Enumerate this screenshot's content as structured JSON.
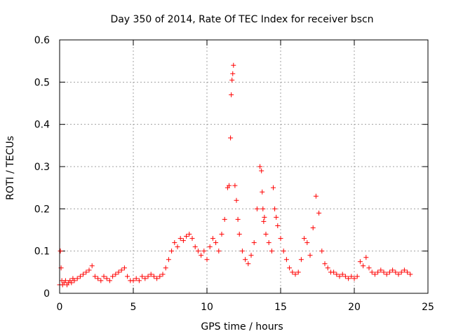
{
  "chart_data": {
    "type": "scatter",
    "title": "Day 350 of 2014, Rate Of TEC Index for receiver bscn",
    "xlabel": "GPS time / hours",
    "ylabel": "ROTI / TECUs",
    "xlim": [
      0,
      25
    ],
    "ylim": [
      0,
      0.6
    ],
    "xticks": [
      0,
      5,
      10,
      15,
      20,
      25
    ],
    "yticks": [
      0,
      0.1,
      0.2,
      0.3,
      0.4,
      0.5,
      0.6
    ],
    "grid": true,
    "marker": "plus",
    "color": "#ff0000",
    "x": [
      0.0,
      0.05,
      0.1,
      0.15,
      0.2,
      0.3,
      0.4,
      0.5,
      0.6,
      0.7,
      0.8,
      0.9,
      1.0,
      1.2,
      1.4,
      1.6,
      1.8,
      2.0,
      2.2,
      2.4,
      2.6,
      2.8,
      3.0,
      3.2,
      3.4,
      3.6,
      3.8,
      4.0,
      4.2,
      4.4,
      4.6,
      4.8,
      5.0,
      5.2,
      5.4,
      5.6,
      5.8,
      6.0,
      6.2,
      6.4,
      6.6,
      6.8,
      7.0,
      7.2,
      7.4,
      7.6,
      7.8,
      8.0,
      8.2,
      8.4,
      8.6,
      8.8,
      9.0,
      9.2,
      9.4,
      9.6,
      9.8,
      10.0,
      10.2,
      10.4,
      10.6,
      10.8,
      11.0,
      11.2,
      11.4,
      11.5,
      11.6,
      11.65,
      11.7,
      11.75,
      11.8,
      11.9,
      12.0,
      12.1,
      12.2,
      12.4,
      12.6,
      12.8,
      13.0,
      13.2,
      13.4,
      13.6,
      13.7,
      13.75,
      13.8,
      13.85,
      13.9,
      14.0,
      14.2,
      14.4,
      14.5,
      14.6,
      14.7,
      14.8,
      15.0,
      15.2,
      15.4,
      15.6,
      15.8,
      16.0,
      16.2,
      16.4,
      16.6,
      16.8,
      17.0,
      17.2,
      17.4,
      17.6,
      17.8,
      18.0,
      18.2,
      18.4,
      18.6,
      18.8,
      19.0,
      19.2,
      19.4,
      19.6,
      19.8,
      20.0,
      20.2,
      20.4,
      20.6,
      20.8,
      21.0,
      21.2,
      21.4,
      21.6,
      21.8,
      22.0,
      22.2,
      22.4,
      22.6,
      22.8,
      23.0,
      23.2,
      23.4,
      23.6,
      23.8
    ],
    "y": [
      0.02,
      0.1,
      0.06,
      0.03,
      0.02,
      0.025,
      0.03,
      0.02,
      0.025,
      0.03,
      0.025,
      0.035,
      0.03,
      0.035,
      0.04,
      0.045,
      0.05,
      0.055,
      0.065,
      0.04,
      0.035,
      0.03,
      0.04,
      0.035,
      0.03,
      0.04,
      0.045,
      0.05,
      0.055,
      0.06,
      0.04,
      0.03,
      0.03,
      0.035,
      0.03,
      0.04,
      0.035,
      0.04,
      0.045,
      0.04,
      0.035,
      0.04,
      0.045,
      0.06,
      0.08,
      0.1,
      0.12,
      0.11,
      0.13,
      0.125,
      0.135,
      0.14,
      0.13,
      0.11,
      0.1,
      0.09,
      0.1,
      0.08,
      0.11,
      0.13,
      0.12,
      0.1,
      0.14,
      0.175,
      0.25,
      0.255,
      0.368,
      0.47,
      0.505,
      0.52,
      0.54,
      0.255,
      0.22,
      0.175,
      0.14,
      0.1,
      0.08,
      0.07,
      0.09,
      0.12,
      0.2,
      0.3,
      0.29,
      0.24,
      0.2,
      0.17,
      0.18,
      0.14,
      0.12,
      0.1,
      0.25,
      0.2,
      0.18,
      0.16,
      0.13,
      0.1,
      0.08,
      0.06,
      0.05,
      0.045,
      0.05,
      0.08,
      0.13,
      0.12,
      0.09,
      0.155,
      0.23,
      0.19,
      0.1,
      0.07,
      0.06,
      0.05,
      0.05,
      0.045,
      0.04,
      0.045,
      0.04,
      0.035,
      0.04,
      0.035,
      0.04,
      0.075,
      0.065,
      0.085,
      0.06,
      0.05,
      0.045,
      0.05,
      0.055,
      0.05,
      0.045,
      0.05,
      0.055,
      0.05,
      0.045,
      0.05,
      0.055,
      0.05,
      0.045
    ]
  }
}
